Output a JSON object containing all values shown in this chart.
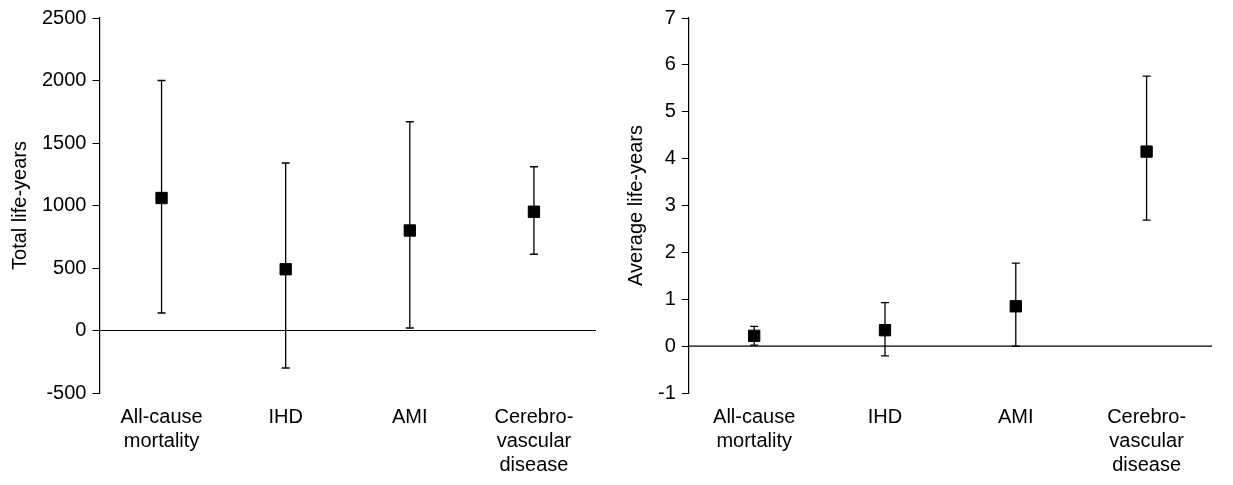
{
  "chart_data": [
    {
      "type": "scatter",
      "ylabel": "Total life-years",
      "categories": [
        "All-cause mortality",
        "IHD",
        "AMI",
        "Cerebro-vascular disease"
      ],
      "values": [
        1060,
        490,
        800,
        950
      ],
      "errors": [
        [
          140,
          2000
        ],
        [
          -300,
          1340
        ],
        [
          20,
          1670
        ],
        [
          610,
          1310
        ]
      ],
      "color": "#000000",
      "marker": "square",
      "ylim": [
        -500,
        2500
      ],
      "yticks": [
        -500,
        0,
        500,
        1000,
        1500,
        2000,
        2500
      ]
    },
    {
      "type": "scatter",
      "ylabel": "Average life-years",
      "categories": [
        "All-cause mortality",
        "IHD",
        "AMI",
        "Cerebro-vascular disease"
      ],
      "values": [
        0.22,
        0.34,
        0.85,
        4.15
      ],
      "errors": [
        [
          0.02,
          0.42
        ],
        [
          -0.21,
          0.93
        ],
        [
          0,
          1.77
        ],
        [
          2.69,
          5.76
        ]
      ],
      "color": "#000000",
      "marker": "square",
      "ylim": [
        -1,
        7
      ],
      "yticks": [
        -1,
        0,
        1,
        2,
        3,
        4,
        5,
        6,
        7
      ]
    }
  ]
}
